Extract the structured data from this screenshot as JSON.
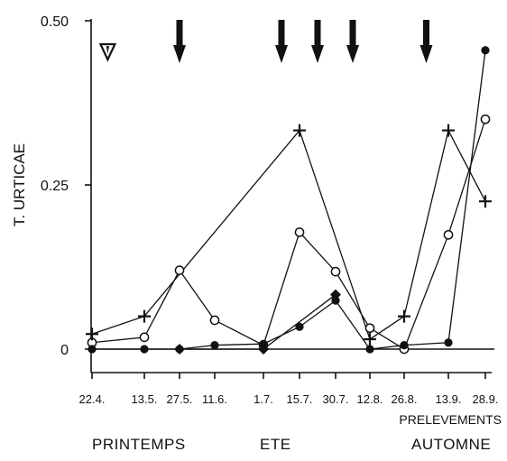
{
  "chart_data": {
    "type": "line",
    "ylabel": "T. URTICAE",
    "xlabel": "PRELEVEMENTS",
    "ylim": [
      0,
      0.5
    ],
    "yticks": [
      {
        "value": 0,
        "label": "0"
      },
      {
        "value": 0.25,
        "label": "0.25"
      },
      {
        "value": 0.5,
        "label": "0.50"
      }
    ],
    "categories": [
      "22.4.",
      "13.5.",
      "27.5.",
      "11.6.",
      "1.7.",
      "15.7.",
      "30.7.",
      "12.8.",
      "26.8.",
      "13.9.",
      "28.9."
    ],
    "seasons": [
      "PRINTEMPS",
      "ETE",
      "AUTOMNE"
    ],
    "series": [
      {
        "marker": "open-circle",
        "values": [
          0.01,
          0.018,
          0.12,
          0.044,
          0.006,
          0.178,
          0.118,
          0.032,
          0.0,
          0.174,
          0.35
        ]
      },
      {
        "marker": "filled-circle",
        "values": [
          0.0,
          0.0,
          0.0,
          0.006,
          0.008,
          0.034,
          0.074,
          0.0,
          0.006,
          0.01,
          0.455
        ]
      },
      {
        "marker": "plus",
        "values": [
          0.023,
          0.05,
          null,
          null,
          null,
          0.333,
          null,
          0.015,
          0.05,
          0.333,
          0.225
        ]
      },
      {
        "marker": "filled-diamond",
        "values": [
          null,
          null,
          0.0,
          null,
          0.0,
          null,
          0.083,
          null,
          null,
          null,
          null
        ]
      }
    ],
    "annotations": {
      "arrows_down_at": [
        2.0,
        4.5,
        5.5,
        6.5,
        8.5
      ],
      "open_triangle_at": 0.3
    }
  }
}
